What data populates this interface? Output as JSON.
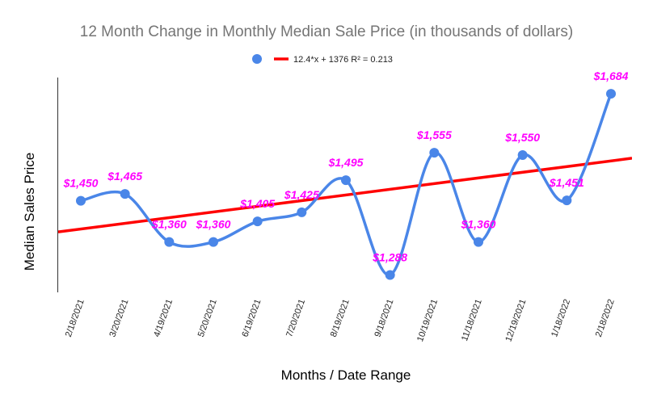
{
  "chart_data": {
    "type": "line",
    "title": "12 Month Change in Monthly Median Sale Price (in thousands of dollars)",
    "xlabel": "Months / Date Range",
    "ylabel": "Median Sales Price",
    "categories": [
      "2/18/2021",
      "3/20/2021",
      "4/19/2021",
      "5/20/2021",
      "6/19/2021",
      "7/20/2021",
      "8/19/2021",
      "9/18/2021",
      "10/19/2021",
      "11/18/2021",
      "12/19/2021",
      "1/18/2022",
      "2/18/2022"
    ],
    "series": [
      {
        "values": [
          1450,
          1465,
          1360,
          1360,
          1405,
          1425,
          1495,
          1288,
          1555,
          1360,
          1550,
          1451,
          1684
        ],
        "labels": [
          "$1,450",
          "$1,465",
          "$1,360",
          "$1,360",
          "$1,405",
          "$1,425",
          "$1,495",
          "$1,288",
          "$1,555",
          "$1,360",
          "$1,550",
          "$1,451",
          "$1,684"
        ],
        "color": "#4a86e8",
        "smooth": true
      }
    ],
    "trendline": {
      "label": "12.4*x + 1376 R² = 0.213",
      "slope": 12.4,
      "intercept": 1376,
      "r2": 0.213,
      "color": "#ff0000"
    },
    "data_label_color": "#ff00ff",
    "ylim": [
      1250,
      1730
    ],
    "grid": false,
    "y_ticks_shown": false,
    "legend_position": "top"
  }
}
